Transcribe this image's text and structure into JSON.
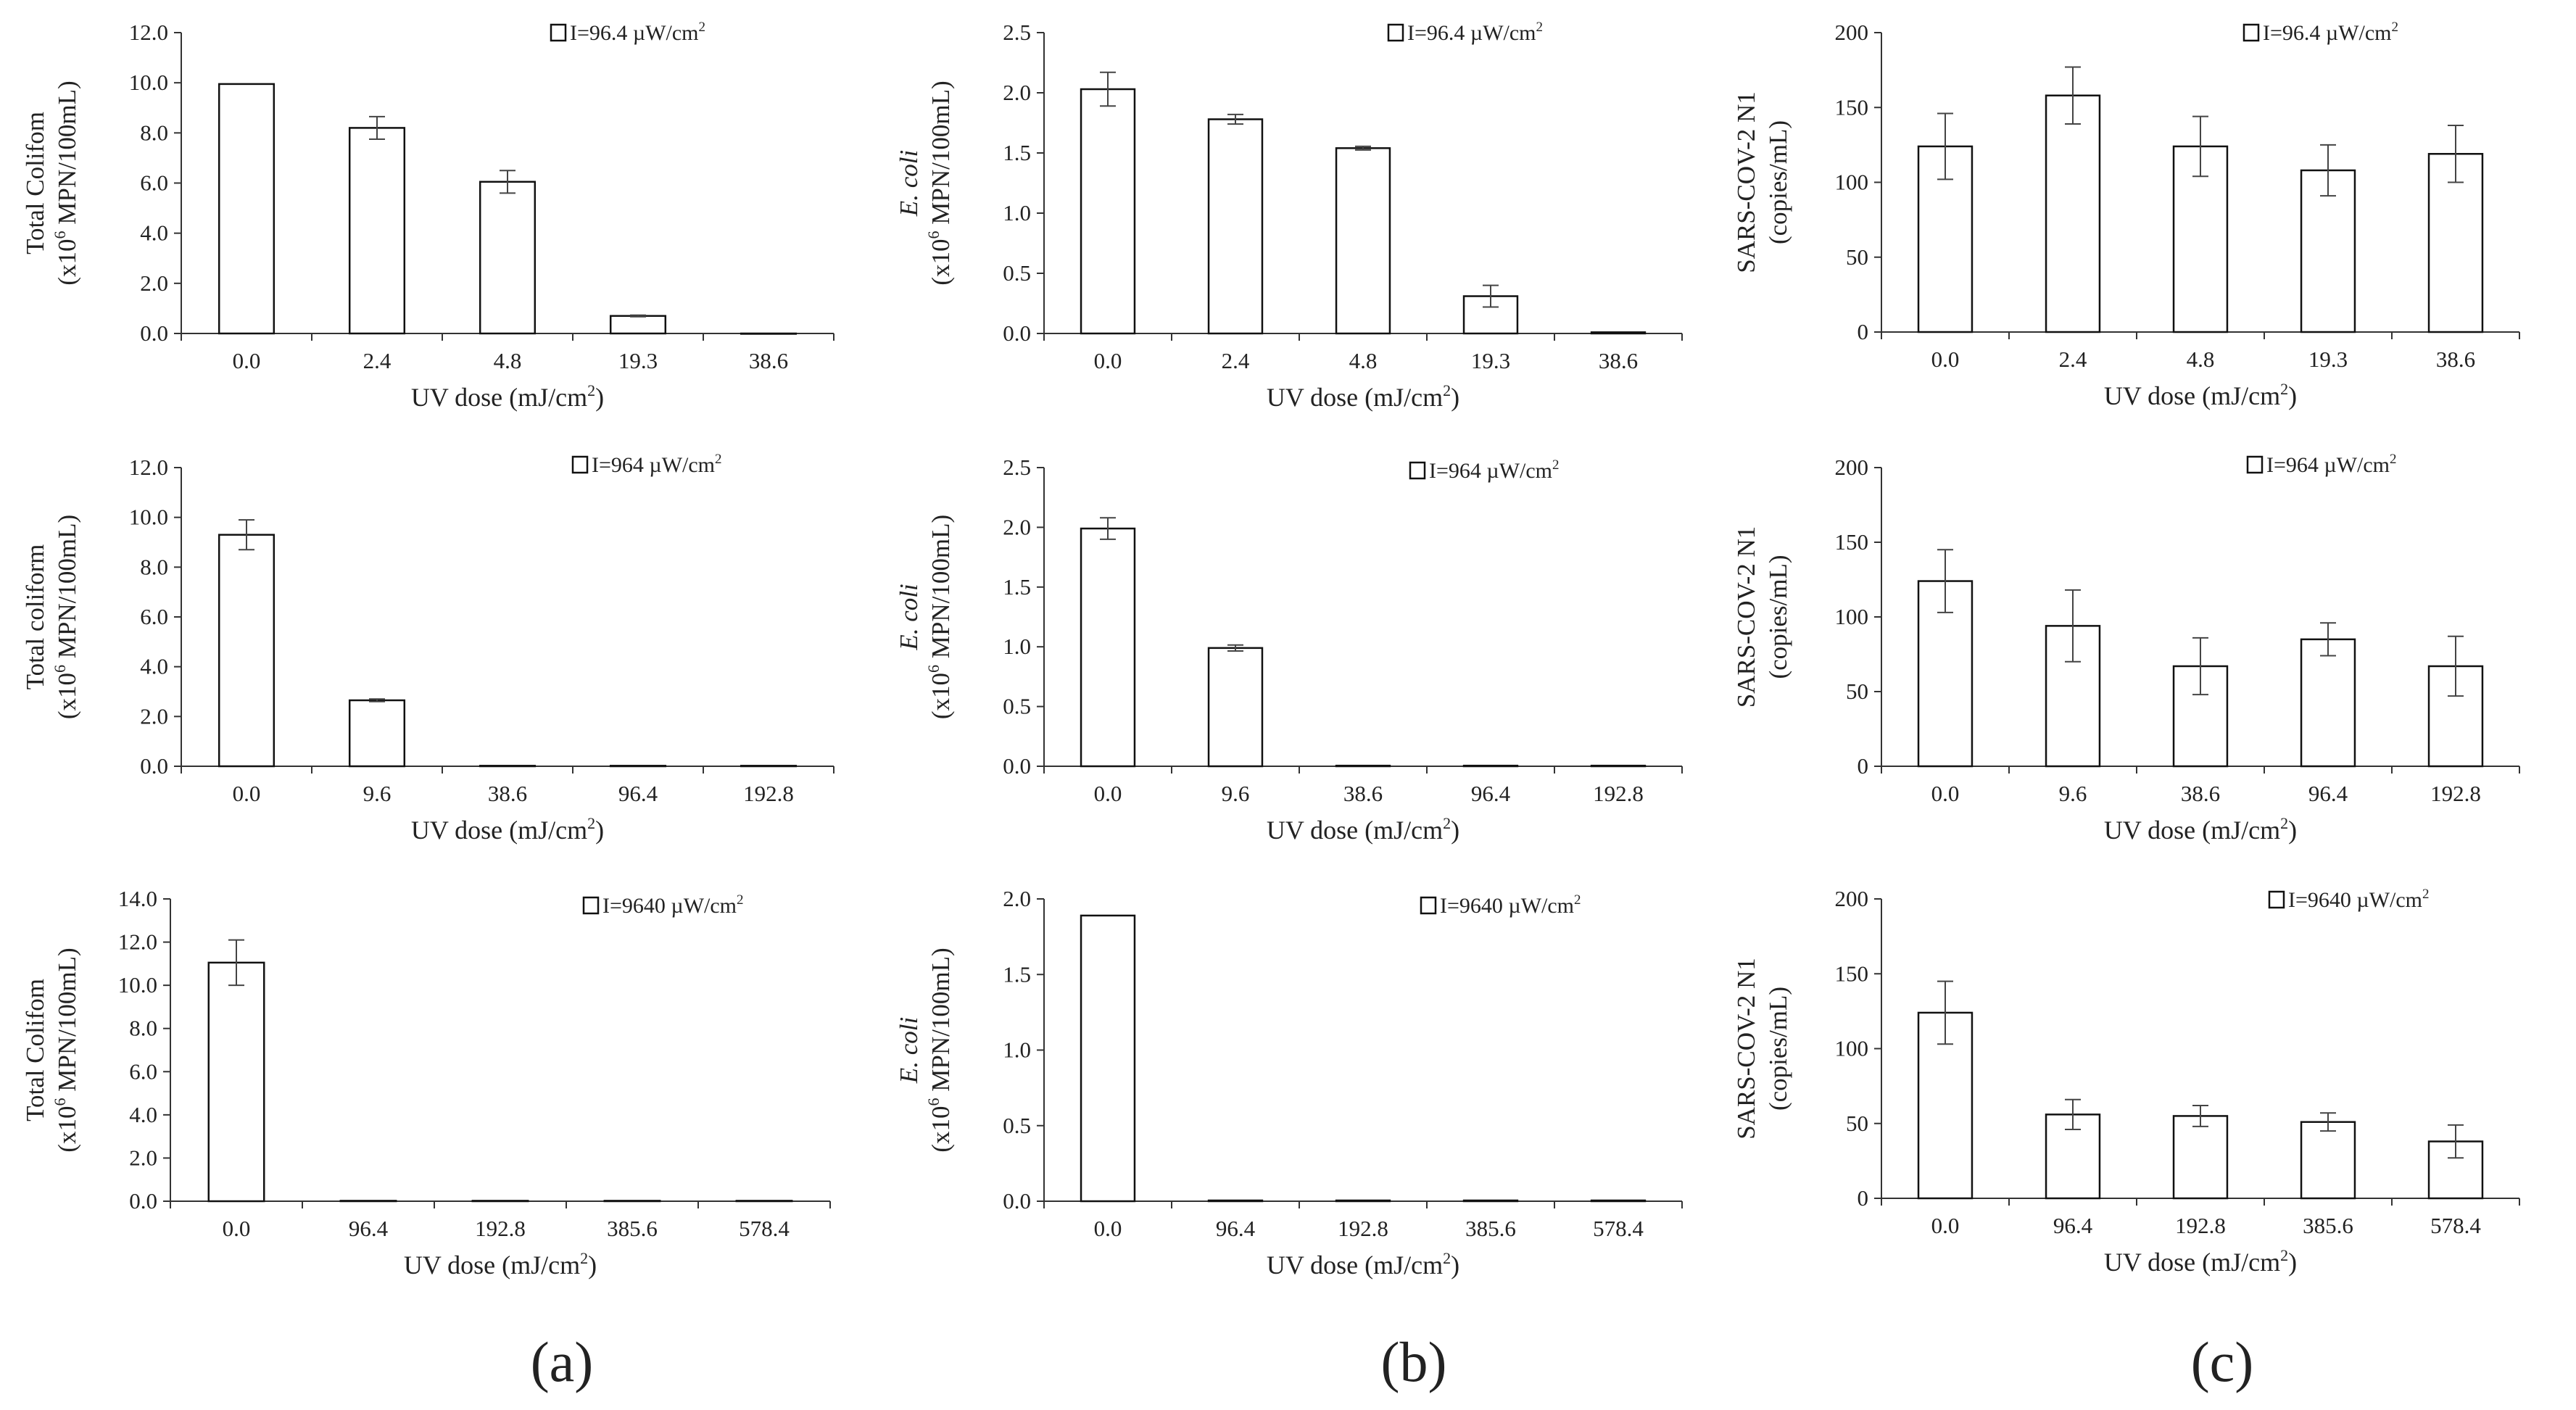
{
  "figure": {
    "panel_labels": [
      "(a)",
      "(b)",
      "(c)"
    ],
    "legend_superscript": "2"
  },
  "chart_data": [
    {
      "type": "bar",
      "title": "",
      "legend": "I=96.4 µW/cm",
      "categories": [
        "0.0",
        "2.4",
        "4.8",
        "19.3",
        "38.6"
      ],
      "values": [
        9.95,
        8.2,
        6.05,
        0.7,
        0.0
      ],
      "errors": [
        0.0,
        0.45,
        0.45,
        0.03,
        0.0
      ],
      "xlabel": "UV dose (mJ/cm",
      "xlabel_sup": "2",
      "xlabel_end": ")",
      "ylabel_line1": "Total Colifom",
      "ylabel_line2_pre": "(x10",
      "ylabel_line2_sup": "6",
      "ylabel_line2_post": " MPN/100mL)",
      "ylim": [
        0,
        12
      ],
      "yticks": [
        "0.0",
        "2.0",
        "4.0",
        "6.0",
        "8.0",
        "10.0",
        "12.0"
      ]
    },
    {
      "type": "bar",
      "title": "",
      "legend": "I=96.4 µW/cm",
      "categories": [
        "0.0",
        "2.4",
        "4.8",
        "19.3",
        "38.6"
      ],
      "values": [
        2.03,
        1.78,
        1.54,
        0.31,
        0.01
      ],
      "errors": [
        0.14,
        0.04,
        0.015,
        0.09,
        0.0
      ],
      "xlabel": "UV dose (mJ/cm",
      "xlabel_sup": "2",
      "xlabel_end": ")",
      "ylabel_line1": "E. coli",
      "ylabel_line2_pre": "(x10",
      "ylabel_line2_sup": "6",
      "ylabel_line2_post": " MPN/100mL)",
      "ylim": [
        0,
        2.5
      ],
      "yticks": [
        "0.0",
        "0.5",
        "1.0",
        "1.5",
        "2.0",
        "2.5"
      ]
    },
    {
      "type": "bar",
      "title": "",
      "legend": "I=96.4 µW/cm",
      "categories": [
        "0.0",
        "2.4",
        "4.8",
        "19.3",
        "38.6"
      ],
      "values": [
        124,
        158,
        124,
        108,
        119
      ],
      "errors": [
        22,
        19,
        20,
        17,
        19
      ],
      "xlabel": "UV dose (mJ/cm",
      "xlabel_sup": "2",
      "xlabel_end": ")",
      "ylabel_line1": "SARS-COV-2  N1",
      "ylabel_line2_pre": "(copies/mL)",
      "ylabel_line2_sup": "",
      "ylabel_line2_post": "",
      "ylim": [
        0,
        200
      ],
      "yticks": [
        "0",
        "50",
        "100",
        "150",
        "200"
      ]
    },
    {
      "type": "bar",
      "title": "",
      "legend": "I=964 µW/cm",
      "categories": [
        "0.0",
        "9.6",
        "38.6",
        "96.4",
        "192.8"
      ],
      "values": [
        9.3,
        2.65,
        0.02,
        0.02,
        0.02
      ],
      "errors": [
        0.6,
        0.05,
        0.0,
        0.0,
        0.0
      ],
      "xlabel": "UV dose (mJ/cm",
      "xlabel_sup": "2",
      "xlabel_end": ")",
      "ylabel_line1": "Total coliform",
      "ylabel_line2_pre": "(x10",
      "ylabel_line2_sup": "6",
      "ylabel_line2_post": " MPN/100mL)",
      "ylim": [
        0,
        12
      ],
      "yticks": [
        "0.0",
        "2.0",
        "4.0",
        "6.0",
        "8.0",
        "10.0",
        "12.0"
      ]
    },
    {
      "type": "bar",
      "title": "",
      "legend": "I=964 µW/cm",
      "categories": [
        "0.0",
        "9.6",
        "38.6",
        "96.4",
        "192.8"
      ],
      "values": [
        1.99,
        0.99,
        0.005,
        0.005,
        0.005
      ],
      "errors": [
        0.09,
        0.025,
        0.0,
        0.0,
        0.0
      ],
      "xlabel": "UV dose (mJ/cm",
      "xlabel_sup": "2",
      "xlabel_end": ")",
      "ylabel_line1": "E. coli",
      "ylabel_line2_pre": "(x10",
      "ylabel_line2_sup": "6",
      "ylabel_line2_post": " MPN/100mL)",
      "ylim": [
        0,
        2.5
      ],
      "yticks": [
        "0.0",
        "0.5",
        "1.0",
        "1.5",
        "2.0",
        "2.5"
      ]
    },
    {
      "type": "bar",
      "title": "",
      "legend": "I=964 µW/cm",
      "categories": [
        "0.0",
        "9.6",
        "38.6",
        "96.4",
        "192.8"
      ],
      "values": [
        124,
        94,
        67,
        85,
        67
      ],
      "errors": [
        21,
        24,
        19,
        11,
        20
      ],
      "xlabel": "UV dose (mJ/cm",
      "xlabel_sup": "2",
      "xlabel_end": ")",
      "ylabel_line1": "SARS-COV-2  N1",
      "ylabel_line2_pre": "(copies/mL)",
      "ylabel_line2_sup": "",
      "ylabel_line2_post": "",
      "ylim": [
        0,
        200
      ],
      "yticks": [
        "0",
        "50",
        "100",
        "150",
        "200"
      ]
    },
    {
      "type": "bar",
      "title": "",
      "legend": "I=9640 µW/cm",
      "categories": [
        "0.0",
        "96.4",
        "192.8",
        "385.6",
        "578.4"
      ],
      "values": [
        11.05,
        0.02,
        0.02,
        0.02,
        0.02
      ],
      "errors": [
        1.05,
        0.0,
        0.0,
        0.0,
        0.0
      ],
      "xlabel": "UV dose (mJ/cm",
      "xlabel_sup": "2",
      "xlabel_end": ")",
      "ylabel_line1": "Total Colifom",
      "ylabel_line2_pre": "(x10",
      "ylabel_line2_sup": "6",
      "ylabel_line2_post": " MPN/100mL)",
      "ylim": [
        0,
        14
      ],
      "yticks": [
        "0.0",
        "2.0",
        "4.0",
        "6.0",
        "8.0",
        "10.0",
        "12.0",
        "14.0"
      ]
    },
    {
      "type": "bar",
      "title": "",
      "legend": "I=9640 µW/cm",
      "categories": [
        "0.0",
        "96.4",
        "192.8",
        "385.6",
        "578.4"
      ],
      "values": [
        1.89,
        0.005,
        0.005,
        0.005,
        0.005
      ],
      "errors": [
        0.0,
        0.0,
        0.0,
        0.0,
        0.0
      ],
      "xlabel": "UV dose (mJ/cm",
      "xlabel_sup": "2",
      "xlabel_end": ")",
      "ylabel_line1": "E. coli",
      "ylabel_line2_pre": "(x10",
      "ylabel_line2_sup": "6",
      "ylabel_line2_post": " MPN/100mL)",
      "ylim": [
        0,
        2.0
      ],
      "yticks": [
        "0.0",
        "0.5",
        "1.0",
        "1.5",
        "2.0"
      ]
    },
    {
      "type": "bar",
      "title": "",
      "legend": "I=9640 µW/cm",
      "categories": [
        "0.0",
        "96.4",
        "192.8",
        "385.6",
        "578.4"
      ],
      "values": [
        124,
        56,
        55,
        51,
        38
      ],
      "errors": [
        21,
        10,
        7,
        6,
        11
      ],
      "xlabel": "UV dose (mJ/cm",
      "xlabel_sup": "2",
      "xlabel_end": ")",
      "ylabel_line1": "SARS-COV-2  N1",
      "ylabel_line2_pre": "(copies/mL)",
      "ylabel_line2_sup": "",
      "ylabel_line2_post": "",
      "ylim": [
        0,
        200
      ],
      "yticks": [
        "0",
        "50",
        "100",
        "150",
        "200"
      ]
    }
  ]
}
